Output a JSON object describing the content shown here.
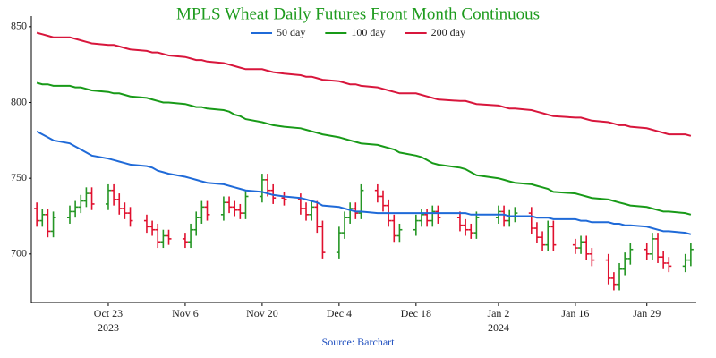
{
  "chart_data": {
    "type": "ohlc",
    "title": "MPLS Wheat Daily Futures Front Month Continuous",
    "source": "Source: Barchart",
    "title_color": "#1e9b1e",
    "source_color": "#1f4fbf",
    "up_color": "#259625",
    "down_color": "#e0102e",
    "x": [
      "2023-10-10",
      "2023-10-11",
      "2023-10-12",
      "2023-10-13",
      "2023-10-16",
      "2023-10-17",
      "2023-10-18",
      "2023-10-19",
      "2023-10-20",
      "2023-10-23",
      "2023-10-24",
      "2023-10-25",
      "2023-10-26",
      "2023-10-27",
      "2023-10-30",
      "2023-10-31",
      "2023-11-01",
      "2023-11-02",
      "2023-11-03",
      "2023-11-06",
      "2023-11-07",
      "2023-11-08",
      "2023-11-09",
      "2023-11-10",
      "2023-11-13",
      "2023-11-14",
      "2023-11-15",
      "2023-11-16",
      "2023-11-17",
      "2023-11-20",
      "2023-11-21",
      "2023-11-22",
      "2023-11-24",
      "2023-11-27",
      "2023-11-28",
      "2023-11-29",
      "2023-11-30",
      "2023-12-01",
      "2023-12-04",
      "2023-12-05",
      "2023-12-06",
      "2023-12-07",
      "2023-12-08",
      "2023-12-11",
      "2023-12-12",
      "2023-12-13",
      "2023-12-14",
      "2023-12-15",
      "2023-12-18",
      "2023-12-19",
      "2023-12-20",
      "2023-12-21",
      "2023-12-22",
      "2023-12-26",
      "2023-12-27",
      "2023-12-28",
      "2023-12-29",
      "2024-01-02",
      "2024-01-03",
      "2024-01-04",
      "2024-01-05",
      "2024-01-08",
      "2024-01-09",
      "2024-01-10",
      "2024-01-11",
      "2024-01-12",
      "2024-01-16",
      "2024-01-17",
      "2024-01-18",
      "2024-01-19",
      "2024-01-22",
      "2024-01-23",
      "2024-01-24",
      "2024-01-25",
      "2024-01-26",
      "2024-01-29",
      "2024-01-30",
      "2024-01-31",
      "2024-02-01",
      "2024-02-02",
      "2024-02-05",
      "2024-02-06"
    ],
    "open": [
      730,
      722,
      726,
      715,
      724,
      728,
      731,
      735,
      740,
      733,
      742,
      736,
      730,
      727,
      722,
      718,
      716,
      708,
      712,
      710,
      708,
      716,
      724,
      731,
      726,
      734,
      731,
      729,
      727,
      738,
      749,
      742,
      737,
      736,
      730,
      726,
      731,
      718,
      701,
      714,
      724,
      730,
      727,
      742,
      738,
      732,
      722,
      712,
      716,
      722,
      726,
      722,
      728,
      724,
      719,
      716,
      714,
      724,
      728,
      722,
      725,
      727,
      717,
      711,
      706,
      718,
      706,
      704,
      708,
      700,
      696,
      684,
      680,
      690,
      697,
      703,
      700,
      710,
      698,
      694,
      692,
      696
    ],
    "high": [
      734,
      730,
      730,
      728,
      732,
      735,
      739,
      744,
      744,
      746,
      746,
      740,
      734,
      731,
      726,
      722,
      720,
      716,
      716,
      714,
      720,
      728,
      735,
      735,
      738,
      738,
      735,
      733,
      742,
      753,
      753,
      746,
      741,
      740,
      734,
      735,
      735,
      722,
      718,
      728,
      734,
      734,
      746,
      746,
      742,
      736,
      726,
      720,
      726,
      730,
      730,
      732,
      732,
      728,
      723,
      720,
      728,
      732,
      732,
      729,
      731,
      731,
      721,
      715,
      722,
      722,
      710,
      712,
      712,
      704,
      700,
      688,
      694,
      701,
      707,
      707,
      714,
      714,
      702,
      698,
      700,
      707
    ],
    "low": [
      718,
      718,
      711,
      711,
      720,
      724,
      727,
      731,
      729,
      729,
      732,
      726,
      723,
      718,
      714,
      712,
      704,
      704,
      706,
      704,
      704,
      712,
      720,
      722,
      722,
      727,
      725,
      723,
      723,
      734,
      738,
      733,
      732,
      726,
      722,
      722,
      714,
      697,
      697,
      710,
      720,
      723,
      723,
      734,
      728,
      718,
      708,
      708,
      712,
      718,
      718,
      718,
      720,
      715,
      712,
      710,
      710,
      720,
      718,
      718,
      721,
      713,
      707,
      702,
      702,
      702,
      700,
      700,
      696,
      692,
      680,
      676,
      676,
      686,
      693,
      696,
      696,
      694,
      690,
      688,
      688,
      692
    ],
    "close": [
      722,
      726,
      715,
      724,
      728,
      731,
      735,
      740,
      733,
      742,
      736,
      730,
      727,
      722,
      718,
      716,
      708,
      712,
      710,
      708,
      716,
      724,
      731,
      726,
      734,
      731,
      729,
      727,
      738,
      749,
      742,
      737,
      736,
      730,
      726,
      731,
      718,
      701,
      714,
      724,
      730,
      727,
      742,
      738,
      732,
      722,
      712,
      716,
      722,
      726,
      722,
      728,
      724,
      719,
      716,
      714,
      724,
      728,
      722,
      725,
      727,
      717,
      711,
      706,
      718,
      706,
      704,
      708,
      700,
      696,
      684,
      680,
      690,
      697,
      703,
      700,
      710,
      698,
      694,
      692,
      696,
      703
    ],
    "series": [
      {
        "name": "50 day",
        "color": "#1f6ad8",
        "values": [
          781,
          779,
          777,
          775,
          773,
          771,
          769,
          767,
          765,
          763,
          762,
          761,
          760,
          759,
          758,
          757,
          755,
          754,
          753,
          751,
          750,
          749,
          748,
          747,
          746,
          745,
          744,
          743,
          742,
          741,
          740,
          739,
          738,
          737,
          736,
          735,
          734,
          732,
          731,
          730,
          729,
          728,
          728,
          727,
          727,
          727,
          727,
          727,
          727,
          727,
          727,
          727,
          727,
          727,
          727,
          726,
          726,
          726,
          726,
          725,
          725,
          725,
          724,
          724,
          724,
          723,
          723,
          722,
          722,
          721,
          721,
          720,
          720,
          719,
          719,
          718,
          717,
          716,
          715,
          715,
          714,
          713
        ]
      },
      {
        "name": "100 day",
        "color": "#189a18",
        "values": [
          813,
          812,
          812,
          811,
          811,
          810,
          810,
          809,
          808,
          807,
          806,
          806,
          805,
          804,
          803,
          802,
          801,
          800,
          800,
          799,
          798,
          797,
          797,
          796,
          795,
          794,
          792,
          791,
          789,
          787,
          786,
          785,
          784,
          783,
          782,
          781,
          780,
          779,
          777,
          776,
          775,
          774,
          773,
          772,
          771,
          770,
          769,
          767,
          765,
          764,
          762,
          760,
          759,
          757,
          756,
          754,
          752,
          750,
          749,
          748,
          747,
          746,
          745,
          744,
          743,
          741,
          740,
          739,
          738,
          737,
          736,
          735,
          734,
          733,
          732,
          731,
          730,
          729,
          728,
          728,
          727,
          726
        ]
      },
      {
        "name": "200 day",
        "color": "#d8163c",
        "values": [
          846,
          845,
          844,
          843,
          843,
          842,
          841,
          840,
          839,
          838,
          838,
          837,
          836,
          835,
          834,
          833,
          833,
          832,
          831,
          830,
          829,
          828,
          828,
          827,
          826,
          825,
          824,
          823,
          822,
          822,
          821,
          820,
          819,
          818,
          817,
          817,
          816,
          815,
          814,
          813,
          812,
          812,
          811,
          810,
          809,
          808,
          807,
          806,
          806,
          805,
          804,
          803,
          802,
          801,
          801,
          800,
          799,
          798,
          797,
          796,
          796,
          795,
          794,
          793,
          792,
          791,
          790,
          790,
          789,
          788,
          787,
          786,
          785,
          785,
          784,
          783,
          782,
          781,
          780,
          779,
          779,
          778
        ]
      }
    ],
    "xlim": [
      "2023-10-09",
      "2024-02-07"
    ],
    "xticks": [
      {
        "value": "2023-10-23",
        "label": "Oct 23"
      },
      {
        "value": "2023-11-06",
        "label": "Nov 6"
      },
      {
        "value": "2023-11-20",
        "label": "Nov 20"
      },
      {
        "value": "2023-12-04",
        "label": "Dec 4"
      },
      {
        "value": "2023-12-18",
        "label": "Dec 18"
      },
      {
        "value": "2024-01-02",
        "label": "Jan 2"
      },
      {
        "value": "2024-01-16",
        "label": "Jan 16"
      },
      {
        "value": "2024-01-29",
        "label": "Jan 29"
      }
    ],
    "xyears": [
      {
        "value": "2023-10-23",
        "label": "2023"
      },
      {
        "value": "2024-01-02",
        "label": "2024"
      }
    ],
    "ylim": [
      668,
      857
    ],
    "yticks": [
      700,
      750,
      800,
      850
    ],
    "grid": false
  }
}
